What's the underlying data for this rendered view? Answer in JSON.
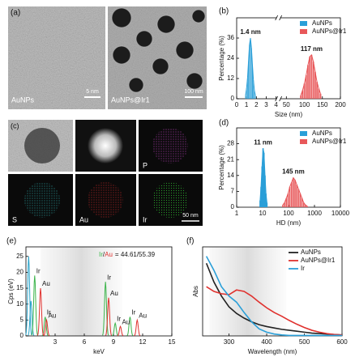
{
  "panels": {
    "labels": [
      "(a)",
      "(b)",
      "(c)",
      "(d)",
      "(e)",
      "(f)"
    ]
  },
  "micrographs": [
    {
      "label": "AuNPs",
      "scale_bar": "5 nm"
    },
    {
      "label": "AuNPs@Ir1",
      "scale_bar": "100 nm"
    }
  ],
  "maps": {
    "labels": [
      "P",
      "S",
      "Au",
      "Ir"
    ],
    "scale_bar": "50 nm"
  },
  "chart_data": [
    {
      "type": "histogram",
      "ylabel": "Percentage (%)",
      "xlabel": "Size (nm)",
      "ylim": [
        0,
        48
      ],
      "yticks": [
        0,
        12,
        24,
        36
      ],
      "xlim": [
        0,
        4
      ],
      "xticks": [
        0,
        1,
        2,
        3,
        4
      ],
      "xlim2": [
        35,
        200
      ],
      "xticks2": [
        50,
        100,
        150,
        200
      ],
      "annotations": [
        "1.4 nm",
        "117 nm"
      ],
      "legend": "upper right",
      "series": [
        {
          "name": "AuNPs",
          "color": "#2a9fd8",
          "x": [
            0.9,
            1.0,
            1.1,
            1.2,
            1.3,
            1.4,
            1.5,
            1.6,
            1.7,
            1.8,
            1.9
          ],
          "values": [
            2,
            6,
            12,
            22,
            32,
            36,
            30,
            20,
            11,
            5,
            2
          ]
        },
        {
          "name": "AuNPs@Ir1",
          "color": "#e8585a",
          "x": [
            90,
            95,
            100,
            105,
            110,
            115,
            120,
            125,
            130,
            135,
            140,
            145
          ],
          "values": [
            2,
            5,
            9,
            14,
            20,
            25,
            26,
            22,
            16,
            10,
            6,
            3
          ]
        }
      ]
    },
    {
      "type": "histogram",
      "ylabel": "Percentage (%)",
      "xlabel": "HD (nm)",
      "log_x": true,
      "ylim": [
        0,
        35
      ],
      "yticks": [
        0,
        7,
        14,
        21,
        28
      ],
      "xlim": [
        1,
        10000
      ],
      "xticks": [
        1,
        10,
        100,
        1000,
        10000
      ],
      "annotations": [
        "11 nm",
        "145 nm"
      ],
      "legend": "upper right",
      "series": [
        {
          "name": "AuNPs",
          "color": "#2a9fd8",
          "x": [
            8,
            8.7,
            9.5,
            10.4,
            11.3,
            12.4,
            13.5,
            14.7
          ],
          "values": [
            3,
            9,
            18,
            26,
            24,
            14,
            6,
            2
          ]
        },
        {
          "name": "AuNPs@Ir1",
          "color": "#e8585a",
          "x": [
            60,
            70,
            82,
            96,
            112,
            131,
            153,
            178,
            208,
            243,
            283,
            330,
            386,
            450,
            525
          ],
          "values": [
            1,
            2,
            4,
            6,
            9,
            11,
            13,
            12,
            10,
            8,
            6,
            4,
            2,
            1,
            0.5
          ]
        }
      ]
    },
    {
      "type": "spectrum",
      "ylabel": "Cps (eV)",
      "xlabel": "keV",
      "xlim": [
        0,
        15
      ],
      "xticks": [
        3,
        6,
        9,
        12,
        15
      ],
      "ylim": [
        0,
        28
      ],
      "yticks": [
        0,
        5,
        10,
        15,
        20,
        25
      ],
      "ratio_label": [
        "Ir",
        "/",
        "Au",
        "= 44.61/55.39"
      ],
      "series": [
        {
          "color": "#2aa3c9",
          "x": [
            0.28,
            0.52
          ],
          "values": [
            25,
            11
          ]
        },
        {
          "name": "Ir",
          "color": "#3cb44b",
          "x": [
            0.9,
            1.98,
            8.18,
            9.18,
            10.7
          ],
          "values": [
            19,
            6,
            17,
            4,
            6
          ]
        },
        {
          "name": "Au",
          "color": "#e0312e",
          "x": [
            1.5,
            2.12,
            8.5,
            9.71,
            11.44
          ],
          "values": [
            15,
            5,
            12,
            3,
            5
          ]
        }
      ]
    },
    {
      "type": "line",
      "ylabel": "Abs",
      "xlabel": "Wavelength (nm)",
      "xlim": [
        230,
        600
      ],
      "xticks": [
        300,
        400,
        500,
        600
      ],
      "ylim": [
        0,
        1.9
      ],
      "legend": "upper right",
      "series": [
        {
          "name": "AuNPs",
          "color": "#222222",
          "x": [
            240,
            260,
            280,
            300,
            320,
            340,
            360,
            380,
            400,
            420,
            440,
            460,
            480,
            500,
            520,
            540,
            560,
            580,
            600
          ],
          "values": [
            1.55,
            1.15,
            0.85,
            0.62,
            0.48,
            0.38,
            0.3,
            0.24,
            0.2,
            0.17,
            0.14,
            0.12,
            0.1,
            0.08,
            0.06,
            0.05,
            0.04,
            0.03,
            0.02
          ]
        },
        {
          "name": "AuNPs@Ir1",
          "color": "#e0312e",
          "x": [
            240,
            260,
            280,
            300,
            320,
            340,
            360,
            380,
            400,
            420,
            440,
            460,
            480,
            500,
            520,
            540,
            560,
            580,
            600
          ],
          "values": [
            1.05,
            0.95,
            0.9,
            0.88,
            0.98,
            0.95,
            0.85,
            0.72,
            0.6,
            0.5,
            0.42,
            0.33,
            0.25,
            0.18,
            0.12,
            0.08,
            0.05,
            0.03,
            0.02
          ]
        },
        {
          "name": "Ir",
          "color": "#2a9fd8",
          "x": [
            240,
            260,
            280,
            300,
            320,
            340,
            360,
            380,
            400,
            420,
            440,
            460,
            480,
            500,
            520,
            540,
            560,
            580,
            600
          ],
          "values": [
            1.7,
            1.4,
            1.05,
            0.85,
            0.72,
            0.5,
            0.3,
            0.15,
            0.08,
            0.04,
            0.02,
            0.01,
            0.01,
            0.01,
            0.01,
            0.01,
            0.01,
            0.01,
            0.01
          ]
        }
      ]
    }
  ]
}
